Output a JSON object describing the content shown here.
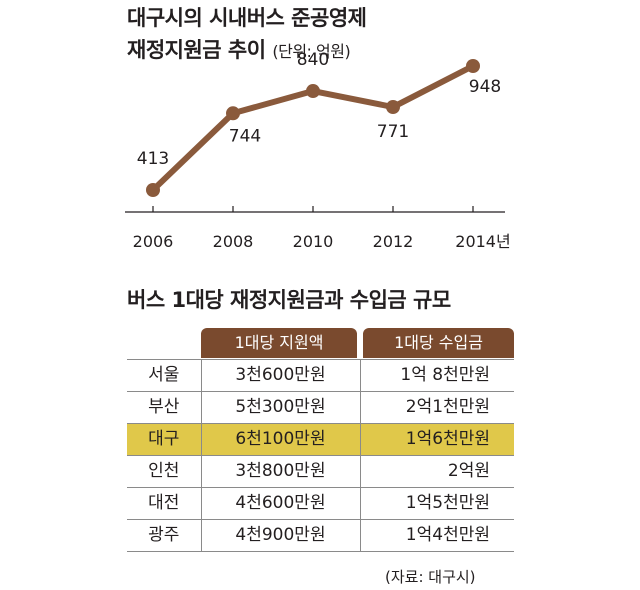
{
  "chart_title_line1": "대구시의 시내버스 준공영제",
  "chart_title_line2": "재정지원금 추이",
  "chart_unit": "(단위: 억원)",
  "chart_data": {
    "type": "line",
    "x": [
      2006,
      2008,
      2010,
      2012,
      2014
    ],
    "tick_labels": [
      "2006",
      "2008",
      "2010",
      "2012",
      "2014년"
    ],
    "values": [
      413,
      744,
      840,
      771,
      948
    ],
    "unit": "억원",
    "ylim": [
      0,
      1000
    ],
    "grid": false,
    "line_color": "#8a5a3c"
  },
  "table_title": "버스 1대당 재정지원금과 수입금 규모",
  "table": {
    "headers": [
      "1대당 지원액",
      "1대당 수입금"
    ],
    "header_color": "#7a4a2e",
    "highlight_color": "#e0c84a",
    "rows": [
      {
        "name": "서울",
        "subsidy": "3천600만원",
        "income": "1억 8천만원"
      },
      {
        "name": "부산",
        "subsidy": "5천300만원",
        "income": "2억1천만원"
      },
      {
        "name": "대구",
        "subsidy": "6천100만원",
        "income": "1억6천만원",
        "highlight": true
      },
      {
        "name": "인천",
        "subsidy": "3천800만원",
        "income": "2억원"
      },
      {
        "name": "대전",
        "subsidy": "4천600만원",
        "income": "1억5천만원"
      },
      {
        "name": "광주",
        "subsidy": "4천900만원",
        "income": "1억4천만원"
      }
    ]
  },
  "source": "(자료: 대구시)"
}
